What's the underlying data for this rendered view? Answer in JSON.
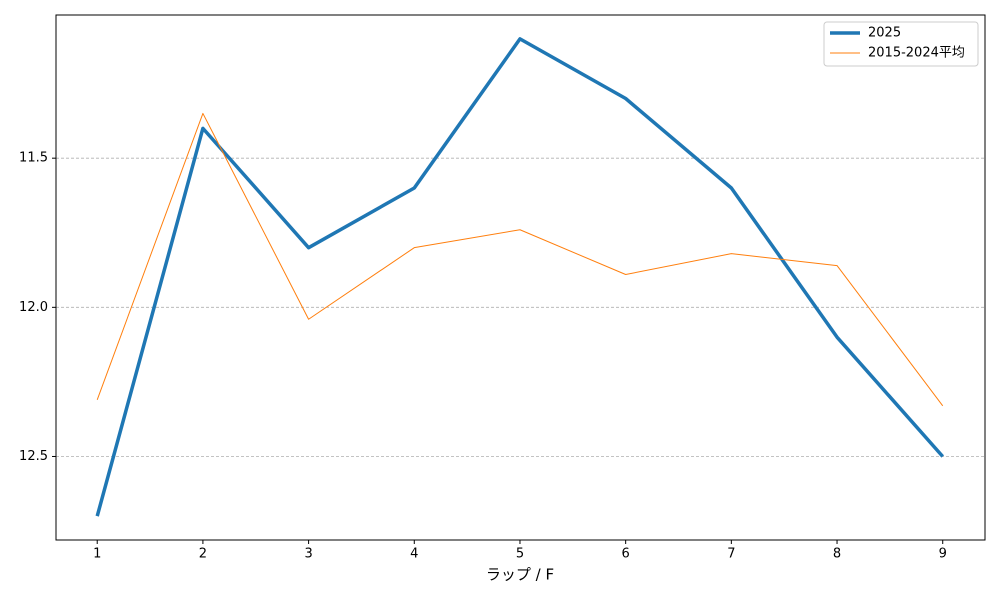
{
  "chart_data": {
    "type": "line",
    "x": [
      1,
      2,
      3,
      4,
      5,
      6,
      7,
      8,
      9
    ],
    "series": [
      {
        "name": "2025",
        "color": "#1f77b4",
        "width": 3.5,
        "values": [
          12.7,
          11.4,
          11.8,
          11.6,
          11.1,
          11.3,
          11.6,
          12.1,
          12.5
        ]
      },
      {
        "name": "2015-2024平均",
        "color": "#ff7f0e",
        "width": 1,
        "values": [
          12.31,
          11.35,
          12.04,
          11.8,
          11.74,
          11.89,
          11.82,
          11.86,
          12.33
        ]
      }
    ],
    "xlabel": "ラップ / F",
    "xlim": [
      0.61,
      9.4
    ],
    "xticks": [
      1,
      2,
      3,
      4,
      5,
      6,
      7,
      8,
      9
    ],
    "ylim": [
      12.78,
      11.02
    ],
    "yticks": [
      11.5,
      {
        "value": 12,
        "label": "12.0"
      },
      12.5
    ],
    "grid": true,
    "legend": "upper right"
  }
}
